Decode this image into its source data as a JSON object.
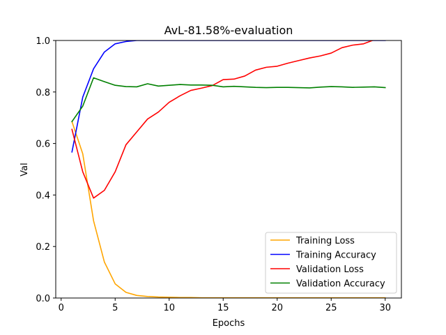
{
  "chart_data": {
    "type": "line",
    "title": "AvL-81.58%-evaluation",
    "xlabel": "Epochs",
    "ylabel": "Val",
    "xlim": [
      -0.5,
      31.5
    ],
    "ylim": [
      0,
      1.0
    ],
    "xticks": [
      0,
      5,
      10,
      15,
      20,
      25,
      30
    ],
    "yticks": [
      0.0,
      0.2,
      0.4,
      0.6,
      0.8,
      1.0
    ],
    "xtick_labels": [
      "0",
      "5",
      "10",
      "15",
      "20",
      "25",
      "30"
    ],
    "ytick_labels": [
      "0.0",
      "0.2",
      "0.4",
      "0.6",
      "0.8",
      "1.0"
    ],
    "grid": false,
    "legend_position": "lower-right",
    "x": [
      1,
      2,
      3,
      4,
      5,
      6,
      7,
      8,
      9,
      10,
      11,
      12,
      13,
      14,
      15,
      16,
      17,
      18,
      19,
      20,
      21,
      22,
      23,
      24,
      25,
      26,
      27,
      28,
      29,
      30
    ],
    "series": [
      {
        "name": "Training Loss",
        "color": "#ffa500",
        "values": [
          0.685,
          0.56,
          0.3,
          0.14,
          0.055,
          0.022,
          0.01,
          0.006,
          0.004,
          0.003,
          0.002,
          0.002,
          0.001,
          0.001,
          0.001,
          0.001,
          0.001,
          0.001,
          0.001,
          0.001,
          0.001,
          0.001,
          0.001,
          0.001,
          0.001,
          0.001,
          0.001,
          0.001,
          0.001,
          0.001
        ]
      },
      {
        "name": "Training Accuracy",
        "color": "#0000ff",
        "values": [
          0.567,
          0.78,
          0.89,
          0.955,
          0.987,
          0.996,
          1.0,
          1.0,
          1.0,
          1.0,
          1.0,
          1.0,
          1.0,
          1.0,
          1.0,
          1.0,
          1.0,
          1.0,
          1.0,
          1.0,
          1.0,
          1.0,
          1.0,
          1.0,
          1.0,
          1.0,
          1.0,
          1.0,
          1.0,
          1.0
        ]
      },
      {
        "name": "Validation Loss",
        "color": "#ff0000",
        "values": [
          0.655,
          0.49,
          0.388,
          0.418,
          0.49,
          0.595,
          0.645,
          0.695,
          0.722,
          0.76,
          0.785,
          0.806,
          0.815,
          0.825,
          0.848,
          0.85,
          0.862,
          0.885,
          0.896,
          0.9,
          0.912,
          0.922,
          0.932,
          0.94,
          0.951,
          0.972,
          0.982,
          0.987,
          1.003,
          1.015
        ]
      },
      {
        "name": "Validation Accuracy",
        "color": "#008000",
        "values": [
          0.685,
          0.745,
          0.855,
          0.84,
          0.826,
          0.821,
          0.82,
          0.832,
          0.823,
          0.826,
          0.829,
          0.827,
          0.827,
          0.826,
          0.82,
          0.822,
          0.82,
          0.818,
          0.817,
          0.818,
          0.818,
          0.817,
          0.816,
          0.819,
          0.821,
          0.82,
          0.818,
          0.819,
          0.82,
          0.817
        ]
      }
    ]
  }
}
